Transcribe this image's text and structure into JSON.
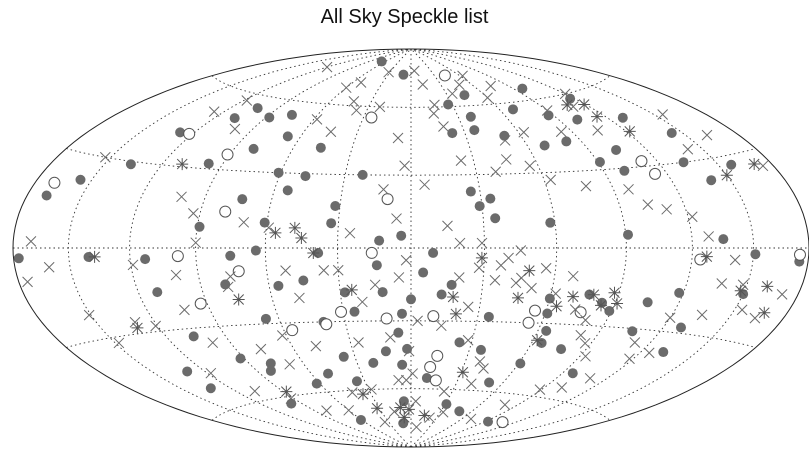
{
  "chart_data": {
    "type": "scatter",
    "title": "All Sky Speckle list",
    "projection": "hammer-aitoff",
    "grid": true,
    "xlim": [
      -180,
      180
    ],
    "ylim": [
      -90,
      90
    ],
    "meridians": [
      -150,
      -120,
      -90,
      -60,
      -30,
      0,
      30,
      60,
      90,
      120,
      150
    ],
    "parallels": [
      -60,
      -30,
      0,
      30,
      60
    ],
    "colors": {
      "filled": "#6b6b6b",
      "open": "#555555",
      "cross": "#6b6b6b",
      "star": "#555555",
      "grid": "#333333"
    },
    "series": [
      {
        "marker": "filled-circle",
        "points": [
          [
            -68,
            82
          ],
          [
            -10,
            76
          ],
          [
            -128,
            42
          ],
          [
            -76,
            54
          ],
          [
            -136,
            29
          ],
          [
            -103,
            55
          ],
          [
            -156,
            22
          ],
          [
            -108,
            50
          ],
          [
            -169,
            16
          ],
          [
            -88,
            52
          ],
          [
            -67,
            45
          ],
          [
            -80,
            39
          ],
          [
            -46,
            41
          ],
          [
            -97,
            32
          ],
          [
            -61,
            30
          ],
          [
            -48,
            29
          ],
          [
            -22,
            30
          ],
          [
            -32,
            17
          ],
          [
            -54,
            23
          ],
          [
            -73,
            19
          ],
          [
            -61,
            10
          ],
          [
            -33,
            10
          ],
          [
            -13,
            3
          ],
          [
            -4,
            5
          ],
          [
            -89,
            8
          ],
          [
            -177,
            -3
          ],
          [
            -140,
            -3
          ],
          [
            -113,
            -4
          ],
          [
            -75,
            -3
          ],
          [
            -64,
            -1
          ],
          [
            -38,
            -2
          ],
          [
            -14,
            -7
          ],
          [
            -45,
            -13
          ],
          [
            -28,
            -18
          ],
          [
            -12,
            -18
          ],
          [
            -4,
            -27
          ],
          [
            -25,
            -26
          ],
          [
            -56,
            -15
          ],
          [
            -79,
            -14
          ],
          [
            -111,
            -16
          ],
          [
            -40,
            -30
          ],
          [
            -66,
            -28
          ],
          [
            -106,
            -33
          ],
          [
            -92,
            -43
          ],
          [
            -130,
            -45
          ],
          [
            -132,
            -52
          ],
          [
            -36,
            -45
          ],
          [
            -13,
            -43
          ],
          [
            -21,
            -48
          ],
          [
            -50,
            -52
          ],
          [
            -78,
            -46
          ],
          [
            -82,
            -49
          ],
          [
            -35,
            -56
          ],
          [
            -62,
            -56
          ],
          [
            -98,
            -63
          ],
          [
            -61,
            -74
          ],
          [
            -6,
            -66
          ],
          [
            -11,
            -77
          ],
          [
            -5,
            -49
          ],
          [
            -6,
            -35
          ],
          [
            0,
            -21
          ],
          [
            -2,
            -42
          ],
          [
            5,
            -10
          ],
          [
            27,
            61
          ],
          [
            38,
            55
          ],
          [
            44,
            65
          ],
          [
            69,
            57
          ],
          [
            87,
            53
          ],
          [
            101,
            50
          ],
          [
            97,
            65
          ],
          [
            117,
            58
          ],
          [
            129,
            48
          ],
          [
            82,
            42
          ],
          [
            51,
            46
          ],
          [
            36,
            49
          ],
          [
            23,
            48
          ],
          [
            69,
            41
          ],
          [
            104,
            37
          ],
          [
            91,
            33
          ],
          [
            157,
            27
          ],
          [
            133,
            30
          ],
          [
            144,
            40
          ],
          [
            140,
            23
          ],
          [
            100,
            29
          ],
          [
            29,
            17
          ],
          [
            34,
            20
          ],
          [
            26,
            23
          ],
          [
            35,
            12
          ],
          [
            58,
            10
          ],
          [
            91,
            5
          ],
          [
            135,
            3
          ],
          [
            151,
            -2
          ],
          [
            175,
            -4
          ],
          [
            118,
            -16
          ],
          [
            129,
            -28
          ],
          [
            150,
            -15
          ],
          [
            105,
            -20
          ],
          [
            77,
            -18
          ],
          [
            84,
            -21
          ],
          [
            89,
            -24
          ],
          [
            64,
            -33
          ],
          [
            65,
            -38
          ],
          [
            61,
            -47
          ],
          [
            61,
            -26
          ],
          [
            35,
            -28
          ],
          [
            36,
            -42
          ],
          [
            77,
            -40
          ],
          [
            51,
            -56
          ],
          [
            96,
            -49
          ],
          [
            93,
            -73
          ],
          [
            48,
            -70
          ],
          [
            31,
            -67
          ],
          [
            10,
            -55
          ],
          [
            24,
            -39
          ],
          [
            17,
            -15
          ],
          [
            13,
            -19
          ],
          [
            9,
            -2
          ],
          [
            106,
            -31
          ],
          [
            132,
            -37
          ],
          [
            60,
            -20
          ]
        ]
      },
      {
        "marker": "open-circle",
        "points": [
          [
            -169,
            20
          ],
          [
            -122,
            42
          ],
          [
            -91,
            36
          ],
          [
            -79,
            14
          ],
          [
            -98,
            -3
          ],
          [
            -72,
            -9
          ],
          [
            -93,
            -21
          ],
          [
            -56,
            -33
          ],
          [
            -39,
            -31
          ],
          [
            -31,
            -26
          ],
          [
            -11,
            -29
          ],
          [
            -16,
            -2
          ],
          [
            -10,
            20
          ],
          [
            -25,
            55
          ],
          [
            43,
            75
          ],
          [
            10,
            -28
          ],
          [
            14,
            -45
          ],
          [
            16,
            -56
          ],
          [
            11,
            -50
          ],
          [
            54,
            -30
          ],
          [
            55,
            -25
          ],
          [
            76,
            -25
          ],
          [
            112,
            32
          ],
          [
            114,
            27
          ],
          [
            124,
            -4
          ],
          [
            108,
            -72
          ],
          [
            175,
            -2
          ]
        ]
      },
      {
        "marker": "cross",
        "points": [
          [
            -120,
            75
          ],
          [
            -60,
            68
          ],
          [
            -32,
            77
          ],
          [
            -52,
            71
          ],
          [
            -43,
            62
          ],
          [
            5,
            78
          ],
          [
            12,
            71
          ],
          [
            35,
            66
          ],
          [
            48,
            70
          ],
          [
            63,
            74
          ],
          [
            60,
            63
          ],
          [
            75,
            68
          ],
          [
            120,
            60
          ],
          [
            110,
            55
          ],
          [
            105,
            45
          ],
          [
            -118,
            57
          ],
          [
            -126,
            51
          ],
          [
            -100,
            46
          ],
          [
            -153,
            30
          ],
          [
            -170,
            2
          ],
          [
            -175,
            -10
          ],
          [
            -161,
            -6
          ],
          [
            -151,
            -22
          ],
          [
            -148,
            -32
          ],
          [
            -130,
            -26
          ],
          [
            -121,
            -28
          ],
          [
            -119,
            -6
          ],
          [
            -102,
            -23
          ],
          [
            -100,
            -10
          ],
          [
            -93,
            13
          ],
          [
            -90,
            2
          ],
          [
            -101,
            19
          ],
          [
            -76,
            -11
          ],
          [
            -78,
            -15
          ],
          [
            -70,
            10
          ],
          [
            -59,
            8
          ],
          [
            -52,
            -9
          ],
          [
            -48,
            -20
          ],
          [
            -36,
            -9
          ],
          [
            -30,
            -9
          ],
          [
            -21,
            -22
          ],
          [
            -15,
            -15
          ],
          [
            -25,
            6
          ],
          [
            -12,
            24
          ],
          [
            -6,
            12
          ],
          [
            -3,
            34
          ],
          [
            -7,
            46
          ],
          [
            -45,
            48
          ],
          [
            -37,
            58
          ],
          [
            -58,
            53
          ],
          [
            -22,
            60
          ],
          [
            17,
            61
          ],
          [
            15,
            57
          ],
          [
            19,
            51
          ],
          [
            24,
            36
          ],
          [
            6,
            26
          ],
          [
            15,
            9
          ],
          [
            20,
            2
          ],
          [
            29,
            2
          ],
          [
            37,
            -7
          ],
          [
            44,
            -14
          ],
          [
            51,
            -16
          ],
          [
            46,
            -12
          ],
          [
            35,
            -13
          ],
          [
            40,
            -4
          ],
          [
            45,
            -1
          ],
          [
            62,
            -18
          ],
          [
            56,
            -8
          ],
          [
            68,
            -11
          ],
          [
            73,
            -24
          ],
          [
            80,
            -28
          ],
          [
            82,
            -34
          ],
          [
            87,
            -37
          ],
          [
            93,
            -42
          ],
          [
            101,
            -55
          ],
          [
            110,
            -50
          ],
          [
            118,
            -41
          ],
          [
            125,
            -38
          ],
          [
            135,
            -23
          ],
          [
            137,
            -12
          ],
          [
            141,
            -4
          ],
          [
            128,
            4
          ],
          [
            122,
            11
          ],
          [
            111,
            14
          ],
          [
            103,
            16
          ],
          [
            97,
            22
          ],
          [
            78,
            24
          ],
          [
            63,
            27
          ],
          [
            56,
            33
          ],
          [
            46,
            36
          ],
          [
            39,
            31
          ],
          [
            50,
            44
          ],
          [
            63,
            47
          ],
          [
            84,
            46
          ],
          [
            90,
            55
          ],
          [
            142,
            34
          ],
          [
            155,
            46
          ],
          [
            162,
            37
          ],
          [
            174,
            25
          ],
          [
            120,
            -25
          ],
          [
            112,
            -35
          ],
          [
            154,
            -20
          ],
          [
            148,
            -12
          ],
          [
            164,
            -22
          ],
          [
            171,
            -14
          ],
          [
            89,
            -57
          ],
          [
            80,
            -65
          ],
          [
            70,
            -73
          ],
          [
            33,
            -71
          ],
          [
            22,
            -74
          ],
          [
            9,
            -79
          ],
          [
            4,
            -66
          ],
          [
            1,
            -53
          ],
          [
            -1,
            -43
          ],
          [
            3,
            -30
          ],
          [
            -3,
            -56
          ],
          [
            -28,
            -60
          ],
          [
            -43,
            -61
          ],
          [
            -60,
            -69
          ],
          [
            -80,
            -68
          ],
          [
            -92,
            -61
          ],
          [
            -108,
            -56
          ],
          [
            -118,
            -47
          ],
          [
            -99,
            -36
          ],
          [
            -77,
            -40
          ],
          [
            -62,
            -35
          ],
          [
            -48,
            -40
          ],
          [
            -8,
            -56
          ],
          [
            -17,
            -71
          ],
          [
            -35,
            -76
          ],
          [
            -68,
            -47
          ],
          [
            -26,
            -39
          ],
          [
            -10,
            -37
          ],
          [
            -5,
            -12
          ],
          [
            -2,
            -5
          ],
          [
            28,
            -38
          ],
          [
            38,
            -47
          ],
          [
            24,
            -61
          ],
          [
            40,
            -57
          ],
          [
            42,
            -50
          ],
          [
            14,
            -32
          ],
          [
            25,
            -24
          ],
          [
            20,
            -12
          ],
          [
            28,
            -8
          ]
        ]
      },
      {
        "marker": "star",
        "points": [
          [
            -110,
            31
          ],
          [
            -137,
            -3
          ],
          [
            -56,
            6
          ],
          [
            -48,
            8
          ],
          [
            -45,
            4
          ],
          [
            -40,
            -2
          ],
          [
            -75,
            -20
          ],
          [
            -88,
            -58
          ],
          [
            -36,
            -62
          ],
          [
            -32,
            -69
          ],
          [
            -8,
            -74
          ],
          [
            -10,
            -69
          ],
          [
            -2,
            -70
          ],
          [
            18,
            -20
          ],
          [
            20,
            -27
          ],
          [
            62,
            -37
          ],
          [
            84,
            -22
          ],
          [
            91,
            -21
          ],
          [
            88,
            -17
          ],
          [
            79,
            -18
          ],
          [
            70,
            -19
          ],
          [
            64,
            -23
          ],
          [
            49,
            -9
          ],
          [
            46,
            -20
          ],
          [
            31,
            -52
          ],
          [
            15,
            -73
          ],
          [
            -25,
            -17
          ],
          [
            29,
            -4
          ],
          [
            108,
            56
          ],
          [
            119,
            55
          ],
          [
            115,
            50
          ],
          [
            122,
            43
          ],
          [
            148,
            -14
          ],
          [
            161,
            -12
          ],
          [
            167,
            -20
          ],
          [
            170,
            26
          ],
          [
            150,
            24
          ],
          [
            127,
            -3
          ],
          [
            -131,
            -28
          ]
        ]
      }
    ]
  }
}
